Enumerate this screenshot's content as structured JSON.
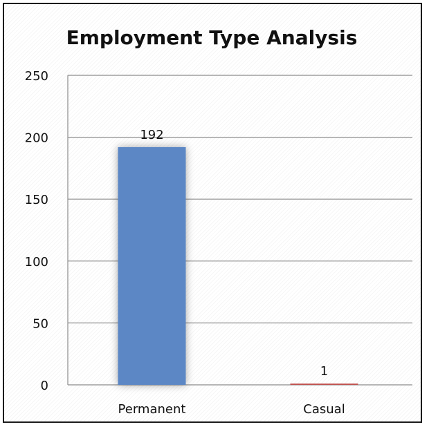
{
  "chart_data": {
    "type": "bar",
    "title": "Employment Type Analysis",
    "xlabel": "",
    "ylabel": "",
    "categories": [
      "Permanent",
      "Casual"
    ],
    "values": [
      192,
      1
    ],
    "data_labels": [
      "192",
      "1"
    ],
    "ylim": [
      0,
      250
    ],
    "y_ticks": [
      0,
      50,
      100,
      150,
      200,
      250
    ],
    "y_tick_labels": [
      "0",
      "50",
      "100",
      "150",
      "200",
      "250"
    ],
    "grid": true,
    "legend": "none",
    "colors": {
      "Permanent": "#5B87C5",
      "Casual": "#C0504D",
      "gridline": "#8c8c8c",
      "axis": "#8c8c8c",
      "text": "#111111"
    }
  }
}
